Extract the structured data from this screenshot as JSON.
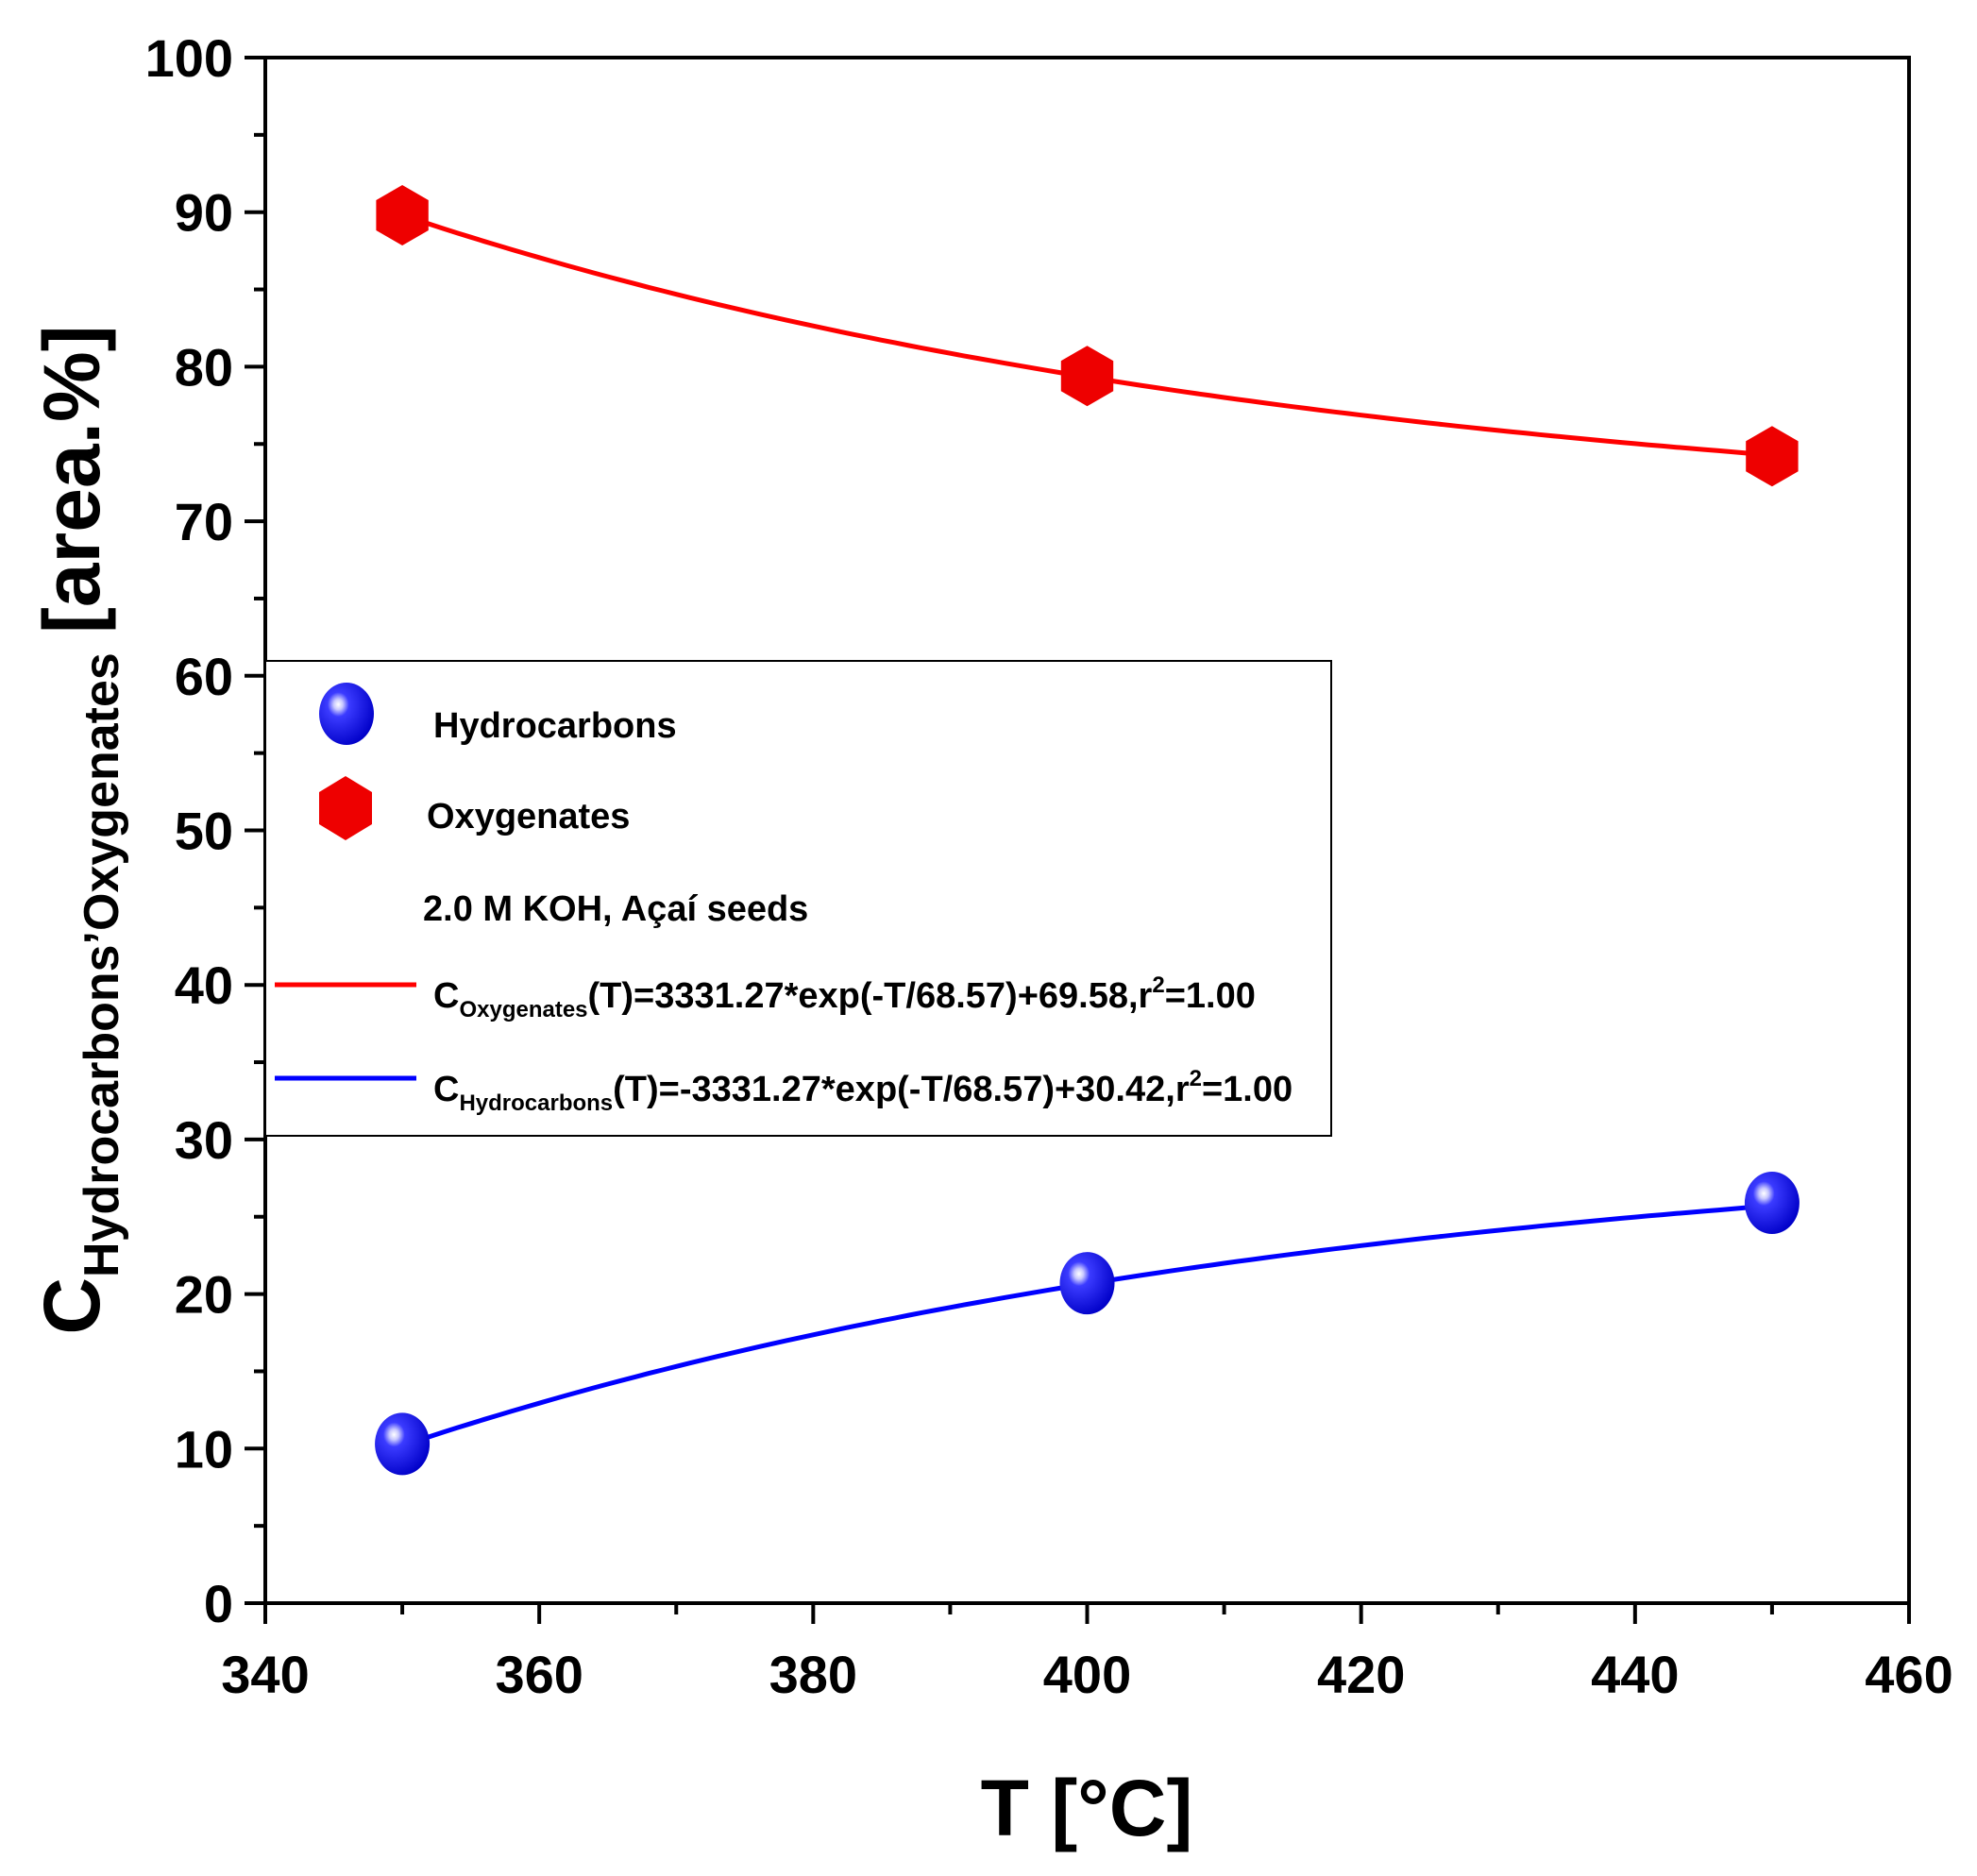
{
  "chart_data": {
    "type": "scatter",
    "xlabel": "T [°C]",
    "ylabel": {
      "base": "C",
      "subscript": "Hydrocarbons",
      "separator": "’",
      "subscript2": "Oxygenates",
      "unit": "[area.%]"
    },
    "xlim": [
      340,
      460
    ],
    "ylim": [
      0,
      100
    ],
    "x_ticks": [
      340,
      360,
      380,
      400,
      420,
      440,
      460
    ],
    "y_ticks": [
      0,
      10,
      20,
      30,
      40,
      50,
      60,
      70,
      80,
      90,
      100
    ],
    "series": [
      {
        "name": "Hydrocarbons",
        "marker": "sphere",
        "color": "#1010ee",
        "x": [
          350,
          400,
          450
        ],
        "y": [
          10.3,
          20.7,
          25.9
        ]
      },
      {
        "name": "Oxygenates",
        "marker": "hexagon",
        "color": "#ee0000",
        "x": [
          350,
          400,
          450
        ],
        "y": [
          89.8,
          79.4,
          74.2
        ]
      }
    ],
    "fits": [
      {
        "name": "C_Oxygenates fit",
        "color": "#ff0000",
        "A": 3331.27,
        "tau": 68.57,
        "c": 69.58,
        "label_prefix": "C",
        "label_sub": "Oxygenates",
        "label_text": "(T)=3331.27*exp(-T/68.57)+69.58,r",
        "label_sup": "2",
        "label_end": "=1.00"
      },
      {
        "name": "C_Hydrocarbons fit",
        "color": "#0000ff",
        "A": -3331.27,
        "tau": 68.57,
        "c": 30.42,
        "label_prefix": "C",
        "label_sub": "Hydrocarbons",
        "label_text": "(T)=-3331.27*exp(-T/68.57)+30.42,r",
        "label_sup": "2",
        "label_end": "=1.00"
      }
    ],
    "legend": {
      "position": "center-left",
      "note": "2.0 M KOH, Açaí seeds"
    }
  }
}
